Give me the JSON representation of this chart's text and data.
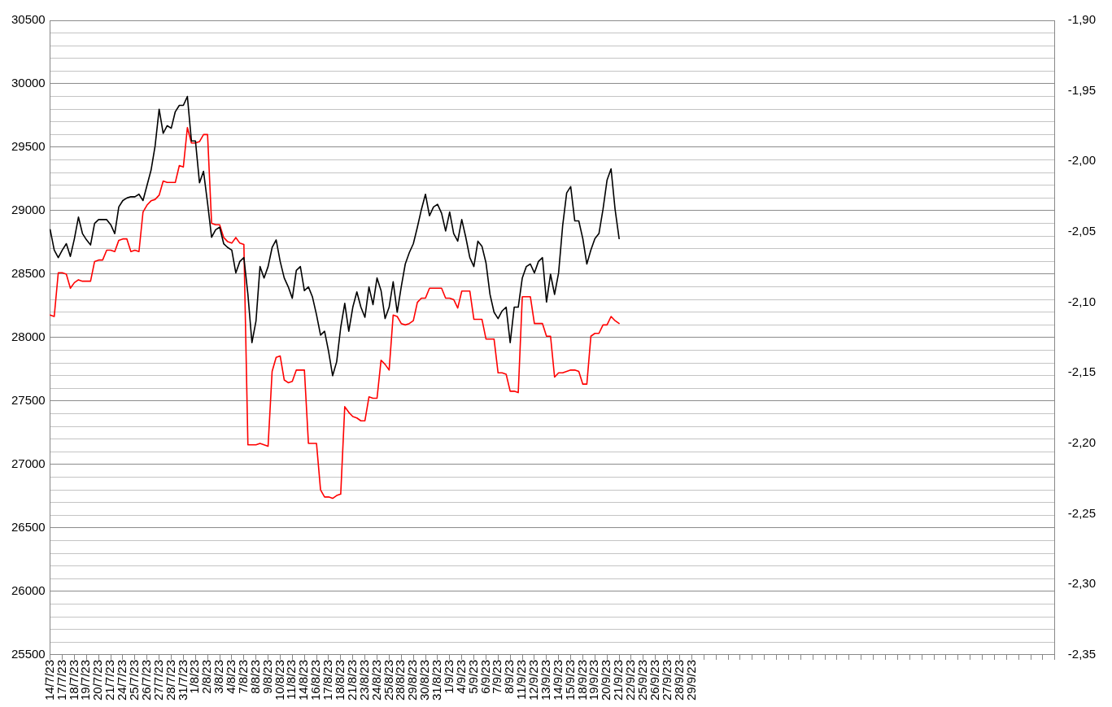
{
  "chart_data": {
    "type": "line",
    "categories": [
      "14/7/23",
      null,
      null,
      "17/7/23",
      null,
      null,
      "18/7/23",
      null,
      null,
      "19/7/23",
      null,
      null,
      "20/7/23",
      null,
      null,
      "21/7/23",
      null,
      null,
      "24/7/23",
      null,
      null,
      "25/7/23",
      null,
      null,
      "26/7/23",
      null,
      null,
      "27/7/23",
      null,
      null,
      "28/7/23",
      null,
      null,
      "31/7/23",
      null,
      null,
      "1/8/23",
      null,
      null,
      "2/8/23",
      null,
      null,
      "3/8/23",
      null,
      null,
      "4/8/23",
      null,
      null,
      "7/8/23",
      null,
      null,
      "8/8/23",
      null,
      null,
      "9/8/23",
      null,
      null,
      "10/8/23",
      null,
      null,
      "11/8/23",
      null,
      null,
      "14/8/23",
      null,
      null,
      "16/8/23",
      null,
      null,
      "17/8/23",
      null,
      null,
      "18/8/23",
      null,
      null,
      "21/8/23",
      null,
      null,
      "23/8/23",
      null,
      null,
      "24/8/23",
      null,
      null,
      "25/8/23",
      null,
      null,
      "28/8/23",
      null,
      null,
      "29/8/23",
      null,
      null,
      "30/8/23",
      null,
      null,
      "31/8/23",
      null,
      null,
      "1/9/23",
      null,
      null,
      "4/9/23",
      null,
      null,
      "5/9/23",
      null,
      null,
      "6/9/23",
      null,
      null,
      "7/9/23",
      null,
      null,
      "8/9/23",
      null,
      null,
      "11/9/23",
      null,
      null,
      "12/9/23",
      null,
      null,
      "13/9/23",
      null,
      null,
      "14/9/23",
      null,
      null,
      "15/9/23",
      null,
      null,
      "18/9/23",
      null,
      null,
      "19/9/23",
      null,
      null,
      "20/9/23",
      null,
      null,
      "21/9/23",
      null,
      null,
      "22/9/23",
      null,
      null,
      "25/9/23",
      null,
      null,
      "26/9/23",
      null,
      null,
      "27/9/23",
      null,
      null,
      "28/9/23",
      null,
      null,
      "29/9/23",
      null,
      null,
      null,
      null,
      null,
      null,
      null,
      null,
      null,
      null,
      null,
      null,
      null,
      null,
      null,
      null,
      null,
      null,
      null,
      null,
      null,
      null,
      null,
      null,
      null,
      null,
      null,
      null,
      null,
      null,
      null,
      null,
      null,
      null,
      null,
      null,
      null,
      null,
      null,
      null,
      null,
      null,
      null,
      null,
      null,
      null,
      null,
      null,
      null,
      null,
      null,
      null,
      null,
      null,
      null,
      null,
      null,
      null,
      null,
      null,
      null,
      null,
      null,
      null,
      null,
      null,
      null,
      null,
      null,
      null,
      null,
      null,
      null,
      null,
      null,
      null,
      null,
      null,
      null,
      null,
      null,
      null,
      null,
      null,
      null,
      null,
      null,
      null,
      null,
      null
    ],
    "series": [
      {
        "color": "#000000",
        "values": [
          28850,
          28690,
          28630,
          28690,
          28740,
          28640,
          28780,
          28950,
          28820,
          28770,
          28730,
          28900,
          28930,
          28930,
          28930,
          28890,
          28820,
          29030,
          29080,
          29100,
          29110,
          29110,
          29130,
          29080,
          29200,
          29320,
          29510,
          29800,
          29610,
          29670,
          29650,
          29780,
          29830,
          29830,
          29900,
          29550,
          29550,
          29220,
          29310,
          29060,
          28790,
          28850,
          28870,
          28740,
          28710,
          28690,
          28510,
          28600,
          28630,
          28340,
          27960,
          28130,
          28560,
          28470,
          28560,
          28710,
          28770,
          28600,
          28470,
          28400,
          28310,
          28530,
          28560,
          28370,
          28400,
          28320,
          28180,
          28020,
          28050,
          27890,
          27700,
          27810,
          28080,
          28270,
          28050,
          28240,
          28360,
          28240,
          28160,
          28400,
          28260,
          28470,
          28370,
          28150,
          28240,
          28440,
          28200,
          28400,
          28580,
          28670,
          28740,
          28870,
          29010,
          29130,
          28960,
          29030,
          29050,
          28980,
          28840,
          28990,
          28820,
          28760,
          28930,
          28790,
          28630,
          28560,
          28760,
          28720,
          28590,
          28340,
          28200,
          28150,
          28210,
          28240,
          27960,
          28240,
          28240,
          28470,
          28560,
          28580,
          28510,
          28600,
          28630,
          28280,
          28500,
          28340,
          28510,
          28880,
          29140,
          29190,
          28920,
          28920,
          28780,
          28580,
          28690,
          28780,
          28820,
          29010,
          29240,
          29330,
          29010,
          28780,
          null,
          null,
          null,
          null,
          null,
          null,
          null,
          null,
          null,
          null,
          null,
          null,
          null,
          null,
          null,
          null,
          null,
          null,
          null,
          null,
          null,
          null,
          null,
          null,
          null,
          null,
          null,
          null,
          null,
          null,
          null,
          null,
          null,
          null,
          null,
          null,
          null,
          null,
          null,
          null,
          null,
          null,
          null,
          null,
          null,
          null,
          null,
          null,
          null,
          null,
          null,
          null,
          null,
          null,
          null,
          null,
          null,
          null,
          null,
          null,
          null,
          null,
          null,
          null,
          null,
          null,
          null,
          null,
          null,
          null,
          null,
          null,
          null,
          null,
          null,
          null,
          null,
          null,
          null,
          null,
          null,
          null,
          null,
          null,
          null,
          null,
          null,
          null,
          null,
          null,
          null,
          null,
          null,
          null,
          null,
          null,
          null,
          null,
          null,
          null,
          null,
          null,
          null,
          null,
          null,
          null,
          null,
          null
        ]
      },
      {
        "color": "#ff0000",
        "axis": "y2",
        "values": [
          -2.109,
          -2.11,
          -2.079,
          -2.079,
          -2.08,
          -2.09,
          -2.086,
          -2.084,
          -2.085,
          -2.085,
          -2.085,
          -2.071,
          -2.07,
          -2.07,
          -2.063,
          -2.063,
          -2.064,
          -2.056,
          -2.055,
          -2.055,
          -2.064,
          -2.063,
          -2.064,
          -2.036,
          -2.031,
          -2.028,
          -2.027,
          -2.024,
          -2.014,
          -2.015,
          -2.015,
          -2.015,
          -2.003,
          -2.004,
          -1.976,
          -1.987,
          -1.987,
          -1.986,
          -1.981,
          -1.981,
          -2.044,
          -2.045,
          -2.045,
          -2.054,
          -2.057,
          -2.058,
          -2.054,
          -2.058,
          -2.059,
          -2.201,
          -2.201,
          -2.201,
          -2.2,
          -2.201,
          -2.202,
          -2.149,
          -2.139,
          -2.138,
          -2.155,
          -2.157,
          -2.156,
          -2.148,
          -2.148,
          -2.148,
          -2.2,
          -2.2,
          -2.2,
          -2.233,
          -2.238,
          -2.238,
          -2.239,
          -2.237,
          -2.236,
          -2.174,
          -2.178,
          -2.181,
          -2.182,
          -2.184,
          -2.184,
          -2.167,
          -2.168,
          -2.168,
          -2.141,
          -2.144,
          -2.148,
          -2.109,
          -2.11,
          -2.115,
          -2.116,
          -2.115,
          -2.113,
          -2.1,
          -2.097,
          -2.097,
          -2.09,
          -2.09,
          -2.09,
          -2.09,
          -2.097,
          -2.097,
          -2.098,
          -2.104,
          -2.092,
          -2.092,
          -2.092,
          -2.112,
          -2.112,
          -2.112,
          -2.126,
          -2.126,
          -2.126,
          -2.15,
          -2.15,
          -2.151,
          -2.163,
          -2.163,
          -2.164,
          -2.096,
          -2.096,
          -2.096,
          -2.115,
          -2.115,
          -2.115,
          -2.124,
          -2.124,
          -2.153,
          -2.15,
          -2.15,
          -2.149,
          -2.148,
          -2.148,
          -2.149,
          -2.158,
          -2.158,
          -2.124,
          -2.122,
          -2.122,
          -2.116,
          -2.116,
          -2.11,
          -2.113,
          -2.115,
          null,
          null,
          null,
          null,
          null,
          null,
          null,
          null,
          null,
          null,
          null,
          null,
          null,
          null,
          null,
          null,
          null,
          null,
          null,
          null,
          null,
          null,
          null,
          null,
          null,
          null,
          null,
          null,
          null,
          null,
          null,
          null,
          null,
          null,
          null,
          null,
          null,
          null,
          null,
          null,
          null,
          null,
          null,
          null,
          null,
          null,
          null,
          null,
          null,
          null,
          null,
          null,
          null,
          null,
          null,
          null,
          null,
          null,
          null,
          null,
          null,
          null,
          null,
          null,
          null,
          null,
          null,
          null,
          null,
          null,
          null,
          null,
          null,
          null,
          null,
          null,
          null,
          null,
          null,
          null,
          null,
          null,
          null,
          null,
          null,
          null,
          null,
          null,
          null,
          null,
          null,
          null,
          null,
          null,
          null,
          null,
          null,
          null,
          null,
          null,
          null,
          null,
          null,
          null,
          null,
          null,
          null,
          null
        ]
      }
    ],
    "ylim": [
      25500,
      30500
    ],
    "yticks": [
      25500,
      {
        "value": 25600,
        "label": null
      },
      {
        "value": 25700,
        "label": null
      },
      {
        "value": 25800,
        "label": null
      },
      {
        "value": 25900,
        "label": null
      },
      26000,
      {
        "value": 26100,
        "label": null
      },
      {
        "value": 26200,
        "label": null
      },
      {
        "value": 26300,
        "label": null
      },
      {
        "value": 26400,
        "label": null
      },
      26500,
      {
        "value": 26600,
        "label": null
      },
      {
        "value": 26700,
        "label": null
      },
      {
        "value": 26800,
        "label": null
      },
      {
        "value": 26900,
        "label": null
      },
      27000,
      {
        "value": 27100,
        "label": null
      },
      {
        "value": 27200,
        "label": null
      },
      {
        "value": 27300,
        "label": null
      },
      {
        "value": 27400,
        "label": null
      },
      27500,
      {
        "value": 27600,
        "label": null
      },
      {
        "value": 27700,
        "label": null
      },
      {
        "value": 27800,
        "label": null
      },
      {
        "value": 27900,
        "label": null
      },
      28000,
      {
        "value": 28100,
        "label": null
      },
      {
        "value": 28200,
        "label": null
      },
      {
        "value": 28300,
        "label": null
      },
      {
        "value": 28400,
        "label": null
      },
      28500,
      {
        "value": 28600,
        "label": null
      },
      {
        "value": 28700,
        "label": null
      },
      {
        "value": 28800,
        "label": null
      },
      {
        "value": 28900,
        "label": null
      },
      29000,
      {
        "value": 29100,
        "label": null
      },
      {
        "value": 29200,
        "label": null
      },
      {
        "value": 29300,
        "label": null
      },
      {
        "value": 29400,
        "label": null
      },
      29500,
      {
        "value": 29600,
        "label": null
      },
      {
        "value": 29700,
        "label": null
      },
      {
        "value": 29800,
        "label": null
      },
      {
        "value": 29900,
        "label": null
      },
      30000,
      {
        "value": 30100,
        "label": null
      },
      {
        "value": 30200,
        "label": null
      },
      {
        "value": 30300,
        "label": null
      },
      {
        "value": 30400,
        "label": null
      },
      30500
    ],
    "y2lim": [
      -2.35,
      -1.9
    ],
    "y2ticks": [
      {
        "value": -2.35,
        "label": "-2,35"
      },
      {
        "value": -2.3,
        "label": "-2,30"
      },
      {
        "value": -2.25,
        "label": "-2,25"
      },
      {
        "value": -2.2,
        "label": "-2,20"
      },
      {
        "value": -2.15,
        "label": "-2,15"
      },
      {
        "value": -2.1,
        "label": "-2,10"
      },
      {
        "value": -2.05,
        "label": "-2,05"
      },
      {
        "value": -2.0,
        "label": "-2,00"
      },
      {
        "value": -1.95,
        "label": "-1,95"
      },
      {
        "value": -1.9,
        "label": "-1,90"
      }
    ],
    "grid": "y",
    "legend": false,
    "marker": "none"
  }
}
